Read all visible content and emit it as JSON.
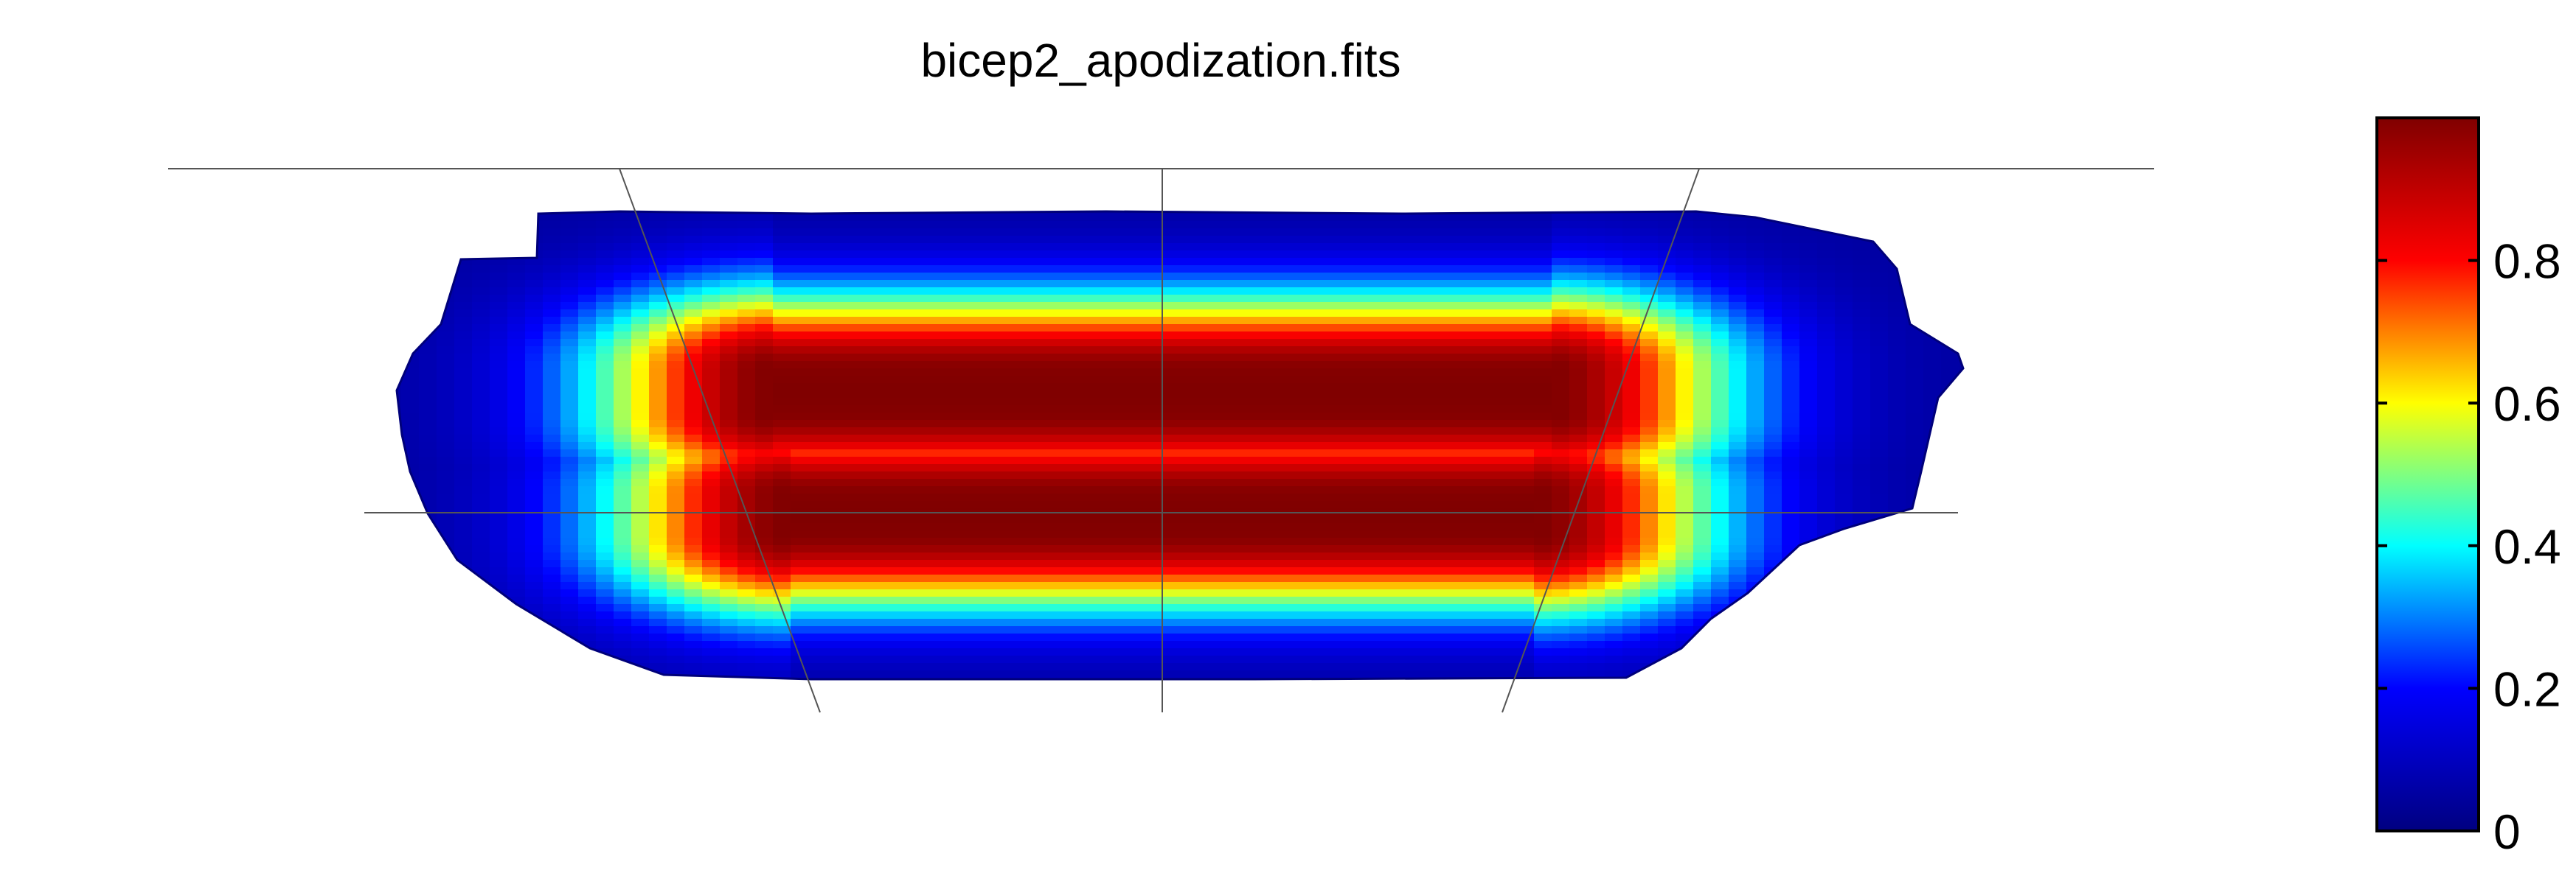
{
  "chart_data": {
    "type": "heatmap",
    "title": "bicep2_apodization.fits",
    "projection": "cylindrical sky map",
    "grid": true,
    "colormap": "jet",
    "colorbar": {
      "location": "right",
      "range": [
        0,
        1
      ],
      "ticks": [
        0,
        0.2,
        0.4,
        0.6,
        0.8
      ],
      "tick_labels": [
        "0",
        "0.2",
        "0.4",
        "0.6",
        "0.8"
      ],
      "colors": [
        "#000080",
        "#0000ff",
        "#00ffff",
        "#ffff00",
        "#ff0000",
        "#800000"
      ]
    },
    "field": {
      "edge_value": 0.05,
      "peak_value": 1.0,
      "lobes": [
        {
          "name": "",
          "peak": 1.0,
          "position": "upper"
        },
        {
          "name": "",
          "peak": 1.0,
          "position": "lower"
        }
      ]
    }
  }
}
